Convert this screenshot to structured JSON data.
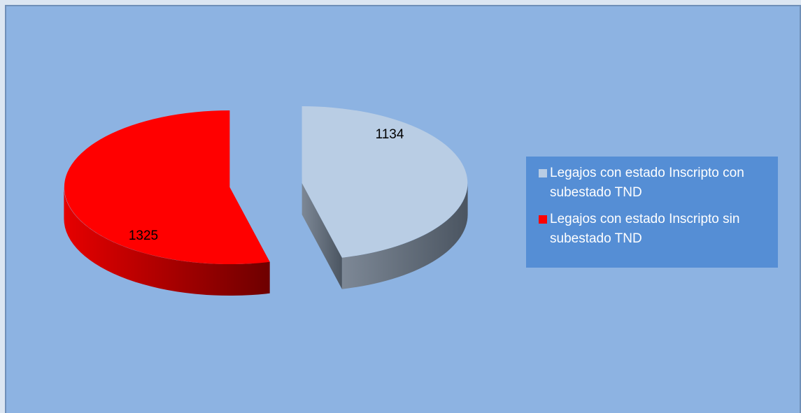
{
  "chart_data": {
    "type": "pie",
    "categories": [
      "Legajos con estado Inscripto con  subestado TND",
      "Legajos con estado Inscripto sin subestado TND"
    ],
    "values": [
      1134,
      1325
    ],
    "colors": [
      "#b9cde4",
      "#ff0000"
    ],
    "legend": "right"
  }
}
